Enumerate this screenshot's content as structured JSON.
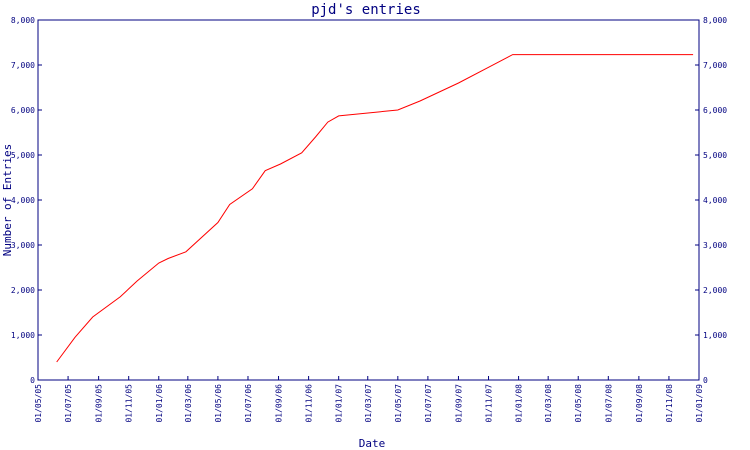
{
  "chart_data": {
    "type": "line",
    "title": "pjd's entries",
    "xlabel": "Date",
    "ylabel": "Number of Entries",
    "ylim": [
      0,
      8000
    ],
    "y_ticks": [
      0,
      1000,
      2000,
      3000,
      4000,
      5000,
      6000,
      7000,
      8000
    ],
    "y_tick_labels": [
      "0",
      "1,000",
      "2,000",
      "3,000",
      "4,000",
      "5,000",
      "6,000",
      "7,000",
      "8,000"
    ],
    "x_tick_labels": [
      "01/05/05",
      "01/07/05",
      "01/09/05",
      "01/11/05",
      "01/01/06",
      "01/03/06",
      "01/05/06",
      "01/07/06",
      "01/09/06",
      "01/11/06",
      "01/01/07",
      "01/03/07",
      "01/05/07",
      "01/07/07",
      "01/09/07",
      "01/11/07",
      "01/01/08",
      "01/03/08",
      "01/05/08",
      "01/07/08",
      "01/09/08",
      "01/11/08",
      "01/01/09"
    ],
    "x_label_rotation": "vertical",
    "grid": false,
    "right_axis_mirror": true,
    "colors": {
      "line": "#ff0000",
      "axis": "#000080",
      "text": "#000080"
    },
    "series": [
      {
        "x": [
          "2005-06-08",
          "2005-07-15",
          "2005-08-20",
          "2005-10-15",
          "2005-11-18",
          "2006-01-01",
          "2006-01-20",
          "2006-02-25",
          "2006-05-01",
          "2006-05-25",
          "2006-07-10",
          "2006-08-05",
          "2006-09-05",
          "2006-10-18",
          "2006-11-15",
          "2006-12-10",
          "2007-01-01",
          "2007-05-01",
          "2007-06-15",
          "2007-09-01",
          "2007-11-01",
          "2007-12-20",
          "2008-02-01",
          "2008-11-25",
          "2008-12-20"
        ],
        "values": [
          400,
          950,
          1400,
          1850,
          2200,
          2600,
          2700,
          2850,
          3500,
          3900,
          4250,
          4650,
          4800,
          5050,
          5400,
          5730,
          5870,
          6000,
          6200,
          6600,
          6950,
          7230,
          7230,
          7230,
          7230
        ]
      }
    ]
  }
}
